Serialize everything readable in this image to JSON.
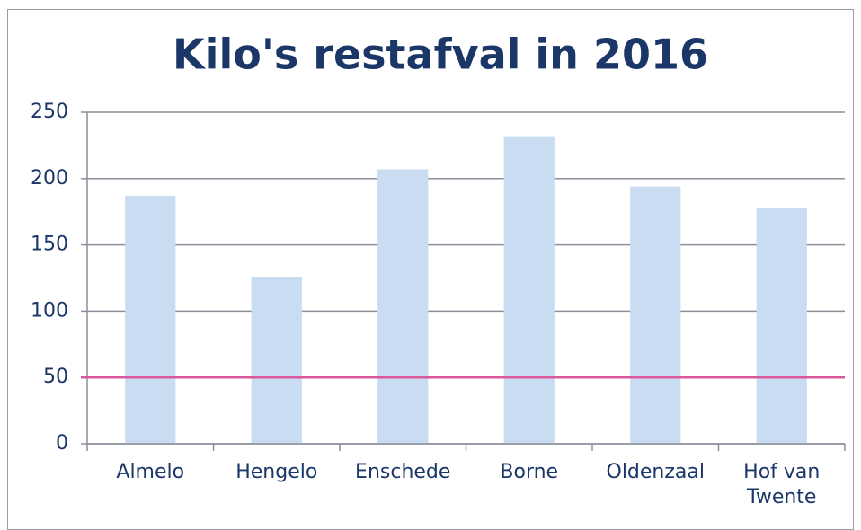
{
  "chart_data": {
    "type": "bar",
    "title": "Kilo's restafval in 2016",
    "categories": [
      "Almelo",
      "Hengelo",
      "Enschede",
      "Borne",
      "Oldenzaal",
      "Hof van Twente"
    ],
    "values": [
      187,
      126,
      207,
      232,
      194,
      178
    ],
    "color": "#c9dcf2",
    "ylim": [
      0,
      250
    ],
    "yticks": [
      0,
      50,
      100,
      150,
      200,
      250
    ],
    "grid": true,
    "reference_line": {
      "value": 50,
      "color": "#d9579b"
    }
  }
}
